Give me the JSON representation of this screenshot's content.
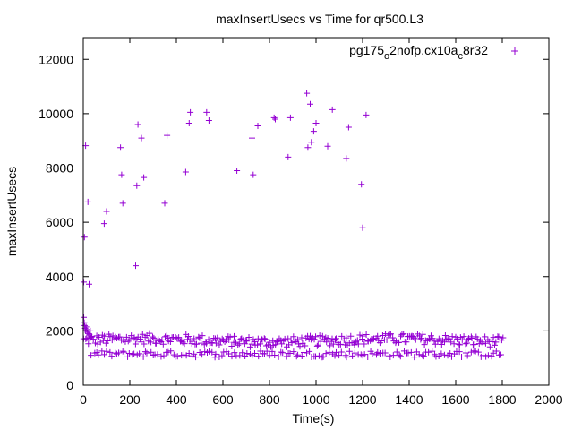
{
  "chart_data": {
    "type": "scatter",
    "title": "maxInsertUsecs vs Time for qr500.L3",
    "xlabel": "Time(s)",
    "ylabel": "maxInsertUsecs",
    "xlim": [
      0,
      2000
    ],
    "ylim": [
      0,
      12800
    ],
    "xticks": [
      0,
      200,
      400,
      600,
      800,
      1000,
      1200,
      1400,
      1600,
      1800,
      2000
    ],
    "yticks": [
      0,
      2000,
      4000,
      6000,
      8000,
      10000,
      12000
    ],
    "grid": false,
    "legend_position": "top-right",
    "marker": "+",
    "colors": {
      "series": "#9400d3",
      "axis": "#000000"
    },
    "legend": {
      "prefix": "pg175",
      "sub1": "o",
      "middle": "2nofp.cx10a",
      "sub2": "c",
      "suffix": "8r32"
    },
    "series": [
      {
        "name": "pg175_o2nofp.cx10a_c8r32",
        "outliers": [
          [
            2,
            3800
          ],
          [
            5,
            5450
          ],
          [
            10,
            8820
          ],
          [
            20,
            6750
          ],
          [
            25,
            3720
          ],
          [
            90,
            5950
          ],
          [
            100,
            6400
          ],
          [
            160,
            8750
          ],
          [
            165,
            7750
          ],
          [
            170,
            6700
          ],
          [
            225,
            4400
          ],
          [
            230,
            7350
          ],
          [
            235,
            9600
          ],
          [
            250,
            9100
          ],
          [
            260,
            7650
          ],
          [
            350,
            6700
          ],
          [
            360,
            9200
          ],
          [
            440,
            7850
          ],
          [
            455,
            9650
          ],
          [
            460,
            10050
          ],
          [
            530,
            10050
          ],
          [
            540,
            9750
          ],
          [
            660,
            7900
          ],
          [
            725,
            9100
          ],
          [
            730,
            7750
          ],
          [
            750,
            9550
          ],
          [
            820,
            9850
          ],
          [
            825,
            9800
          ],
          [
            880,
            8400
          ],
          [
            890,
            9850
          ],
          [
            960,
            10750
          ],
          [
            965,
            8750
          ],
          [
            975,
            10350
          ],
          [
            980,
            8950
          ],
          [
            990,
            9350
          ],
          [
            1000,
            9650
          ],
          [
            1050,
            8800
          ],
          [
            1070,
            10150
          ],
          [
            1130,
            8350
          ],
          [
            1140,
            9500
          ],
          [
            1195,
            7400
          ],
          [
            1200,
            5800
          ],
          [
            1215,
            9950
          ]
        ],
        "early_spike": [
          [
            2,
            2500
          ],
          [
            4,
            2300
          ],
          [
            6,
            2200
          ],
          [
            8,
            2100
          ],
          [
            10,
            2000
          ],
          [
            12,
            2150
          ],
          [
            15,
            2050
          ],
          [
            18,
            1950
          ],
          [
            22,
            1900
          ],
          [
            26,
            1850
          ],
          [
            30,
            2000
          ],
          [
            35,
            1800
          ]
        ],
        "main_band": {
          "x_start": 0,
          "x_end": 1800,
          "step": 6,
          "center": 1650,
          "spread": 200
        },
        "low_band": {
          "x_start": 30,
          "x_end": 1800,
          "step": 11,
          "center": 1150,
          "spread": 120
        }
      }
    ]
  }
}
